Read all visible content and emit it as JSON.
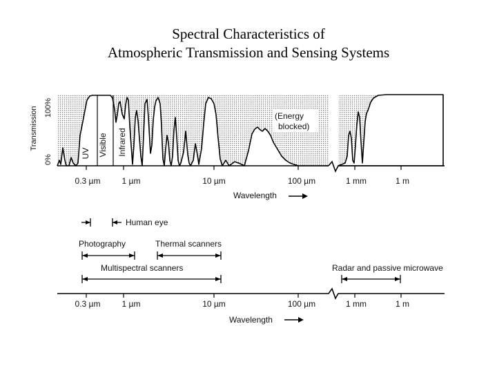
{
  "title": {
    "line1": "Spectral Characteristics of",
    "line2": "Atmospheric Transmission and Sensing Systems"
  },
  "transmission_chart": {
    "ylabel": "Transmission",
    "ytick_100": "100%",
    "ytick_0": "0%",
    "region_uv": "UV",
    "region_visible": "Visible",
    "region_infrared": "Infrared",
    "blocked_line1": "(Energy",
    "blocked_line2": "blocked)",
    "xticks": [
      "0.3 µm",
      "1 µm",
      "10 µm",
      "100 µm",
      "1 mm",
      "1 m"
    ],
    "xlabel": "Wavelength"
  },
  "sensing_systems": {
    "human_eye": "Human eye",
    "photography": "Photography",
    "thermal_scanners": "Thermal scanners",
    "multispectral_scanners": "Multispectral scanners",
    "radar": "Radar and passive microwave",
    "xticks": [
      "0.3 µm",
      "1 µm",
      "10 µm",
      "100 µm",
      "1 mm",
      "1 m"
    ],
    "xlabel": "Wavelength"
  }
}
